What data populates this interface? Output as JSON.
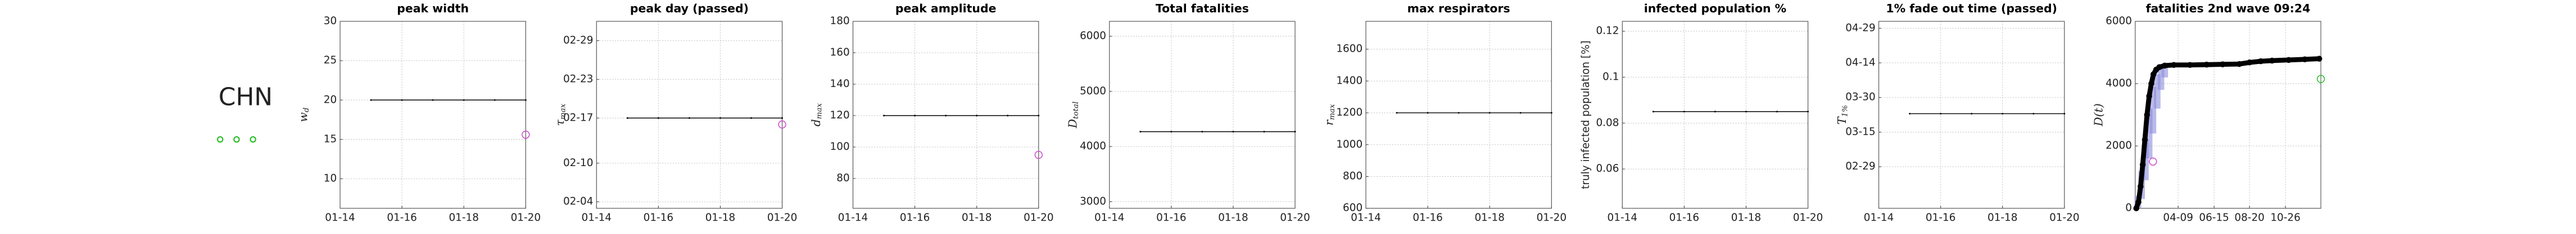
{
  "label": "CHN",
  "chart_data": [
    {
      "type": "line",
      "title": "peak width",
      "y_label": "w",
      "y_label_sub": "d",
      "xlim": [
        "01-14",
        "01-20"
      ],
      "xticks": [
        "01-14",
        "01-16",
        "01-18",
        "01-20"
      ],
      "ylim": [
        6.25,
        30
      ],
      "yticks": [
        10,
        15,
        20,
        25,
        30
      ],
      "grid": true,
      "series": [
        {
          "color": "#000000",
          "x": [
            "01-15",
            "01-16",
            "01-17",
            "01-18",
            "01-19",
            "01-20"
          ],
          "values": [
            20,
            20,
            20,
            20,
            20,
            20
          ]
        }
      ],
      "markers": [
        {
          "x": "01-20",
          "y": 15.6,
          "color": "#cc44cc"
        }
      ]
    },
    {
      "type": "line",
      "title": "peak day (passed)",
      "y_label": "τ",
      "y_label_sub": "max",
      "xlim": [
        "01-14",
        "01-20"
      ],
      "xticks": [
        "01-14",
        "01-16",
        "01-18",
        "01-20"
      ],
      "ylim": [
        "02-03",
        "03-03"
      ],
      "yticks": [
        "02-04",
        "02-10",
        "02-17",
        "02-23",
        "02-29"
      ],
      "grid": true,
      "series": [
        {
          "color": "#000000",
          "x": [
            "01-15",
            "01-16",
            "01-17",
            "01-18",
            "01-19",
            "01-20"
          ],
          "values": [
            "02-17",
            "02-17",
            "02-17",
            "02-17",
            "02-17",
            "02-17"
          ]
        }
      ],
      "markers": [
        {
          "x": "01-20",
          "y": "02-16",
          "color": "#cc44cc"
        }
      ]
    },
    {
      "type": "line",
      "title": "peak amplitude",
      "y_label": "d",
      "y_label_sub": "max",
      "xlim": [
        "01-14",
        "01-20"
      ],
      "xticks": [
        "01-14",
        "01-16",
        "01-18",
        "01-20"
      ],
      "ylim": [
        61,
        180
      ],
      "yticks": [
        80,
        100,
        120,
        140,
        160,
        180
      ],
      "grid": true,
      "series": [
        {
          "color": "#000000",
          "x": [
            "01-15",
            "01-16",
            "01-17",
            "01-18",
            "01-19",
            "01-20"
          ],
          "values": [
            120,
            120,
            120,
            120,
            120,
            120
          ]
        }
      ],
      "markers": [
        {
          "x": "01-20",
          "y": 95,
          "color": "#cc44cc"
        }
      ]
    },
    {
      "type": "line",
      "title": "Total fatalities",
      "y_label": "D",
      "y_label_sub": "total",
      "xlim": [
        "01-14",
        "01-20"
      ],
      "xticks": [
        "01-14",
        "01-16",
        "01-18",
        "01-20"
      ],
      "ylim": [
        2880,
        6270
      ],
      "yticks": [
        3000,
        4000,
        5000,
        6000
      ],
      "grid": true,
      "series": [
        {
          "color": "#000000",
          "x": [
            "01-15",
            "01-16",
            "01-17",
            "01-18",
            "01-19",
            "01-20"
          ],
          "values": [
            4270,
            4270,
            4270,
            4270,
            4270,
            4270
          ]
        }
      ],
      "markers": []
    },
    {
      "type": "line",
      "title": "max respirators",
      "y_label": "r",
      "y_label_sub": "max",
      "xlim": [
        "01-14",
        "01-20"
      ],
      "xticks": [
        "01-14",
        "01-16",
        "01-18",
        "01-20"
      ],
      "ylim": [
        600,
        1775
      ],
      "yticks": [
        600,
        800,
        1000,
        1200,
        1400,
        1600
      ],
      "grid": true,
      "series": [
        {
          "color": "#000000",
          "x": [
            "01-15",
            "01-16",
            "01-17",
            "01-18",
            "01-19",
            "01-20"
          ],
          "values": [
            1200,
            1200,
            1200,
            1200,
            1200,
            1200
          ]
        }
      ],
      "markers": []
    },
    {
      "type": "line",
      "title": "infected population %",
      "y_label": "truly infected population [%]",
      "xlim": [
        "01-14",
        "01-20"
      ],
      "xticks": [
        "01-14",
        "01-16",
        "01-18",
        "01-20"
      ],
      "ylim": [
        0.0429,
        0.1243
      ],
      "yticks": [
        0.06,
        0.08,
        0.1,
        0.12
      ],
      "grid": true,
      "series": [
        {
          "color": "#000000",
          "x": [
            "01-15",
            "01-16",
            "01-17",
            "01-18",
            "01-19",
            "01-20"
          ],
          "values": [
            0.085,
            0.085,
            0.085,
            0.085,
            0.085,
            0.085
          ]
        }
      ],
      "markers": []
    },
    {
      "type": "line",
      "title": "1% fade out time (passed)",
      "y_label": "T",
      "y_label_sub": "1%",
      "xlim": [
        "01-14",
        "01-20"
      ],
      "xticks": [
        "01-14",
        "01-16",
        "01-18",
        "01-20"
      ],
      "ylim": [
        "02-11",
        "05-02"
      ],
      "yticks": [
        "02-29",
        "03-15",
        "03-30",
        "04-14",
        "04-29"
      ],
      "grid": true,
      "series": [
        {
          "color": "#000000",
          "x": [
            "01-15",
            "01-16",
            "01-17",
            "01-18",
            "01-19",
            "01-20"
          ],
          "values": [
            "03-23",
            "03-23",
            "03-23",
            "03-23",
            "03-23",
            "03-23"
          ]
        }
      ],
      "markers": []
    },
    {
      "type": "dots",
      "title": "fatalities 2nd wave 09:24",
      "y_label": "D(t)",
      "xlim": [
        "01-20",
        "12-31"
      ],
      "xticks": [
        "04-09",
        "06-15",
        "08-20",
        "10-26"
      ],
      "ylim": [
        0,
        6000
      ],
      "yticks": [
        0,
        2000,
        4000,
        6000
      ],
      "grid": true,
      "band": {
        "color": "#8c8cdc",
        "x": [
          "01-25",
          "02-01",
          "02-08",
          "02-15",
          "02-22",
          "03-01",
          "03-08",
          "03-15"
        ],
        "lower": [
          0,
          300,
          900,
          1600,
          2400,
          3200,
          3800,
          4200
        ],
        "upper": [
          400,
          1200,
          2200,
          3200,
          3900,
          4300,
          4500,
          4600
        ]
      },
      "series": [
        {
          "color": "#000000",
          "x": [
            "01-22",
            "01-26",
            "01-30",
            "02-03",
            "02-07",
            "02-11",
            "02-15",
            "02-19",
            "02-23",
            "02-28",
            "03-05",
            "03-15",
            "04-01",
            "05-01",
            "06-01",
            "07-01",
            "08-01",
            "08-20",
            "09-10",
            "10-01",
            "11-01",
            "12-01",
            "12-28"
          ],
          "values": [
            0,
            200,
            700,
            1400,
            2200,
            3000,
            3600,
            4000,
            4300,
            4450,
            4530,
            4580,
            4600,
            4600,
            4610,
            4620,
            4630,
            4680,
            4720,
            4740,
            4760,
            4780,
            4800
          ]
        }
      ],
      "markers": [
        {
          "x": "02-22",
          "y": 1500,
          "color": "#cc44cc"
        },
        {
          "x": "12-31",
          "y": 4150,
          "color": "#22bb22"
        }
      ]
    }
  ]
}
